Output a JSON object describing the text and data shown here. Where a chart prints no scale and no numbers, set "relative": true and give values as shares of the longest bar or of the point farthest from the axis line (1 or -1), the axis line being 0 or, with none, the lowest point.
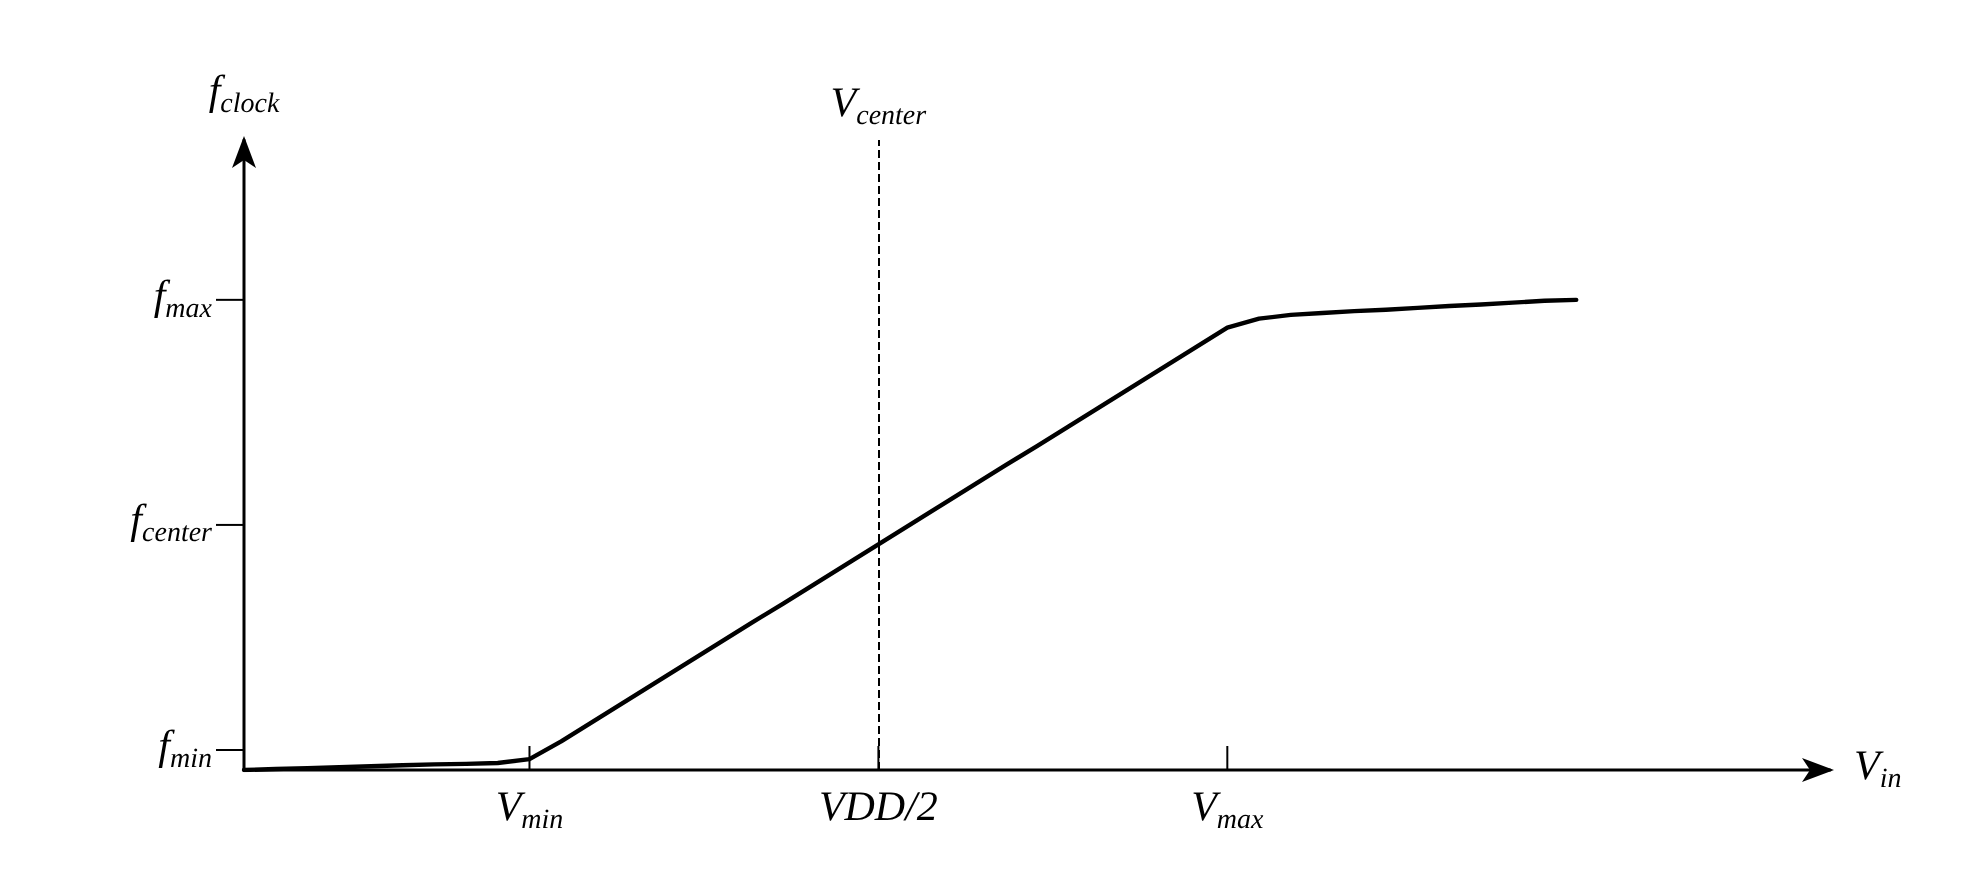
{
  "chart_data": {
    "type": "line",
    "relative": true,
    "xlabel": "V$_{in}$",
    "ylabel": "f$_{clock}$",
    "categories": [
      null,
      null,
      null,
      null,
      null,
      null,
      null,
      null,
      null,
      "V$_{min}$",
      null,
      null,
      null,
      null,
      null,
      null,
      null,
      null,
      null,
      null,
      "VDD/2",
      null,
      null,
      null,
      null,
      null,
      null,
      null,
      null,
      null,
      null,
      "V$_{max}$",
      null,
      null,
      null,
      null,
      null,
      null,
      null,
      null,
      null,
      null,
      null,
      null,
      null,
      null,
      null,
      null,
      null,
      null,
      null
    ],
    "series": [
      {
        "color": "#000000",
        "values": [
          0,
          0.002,
          0.004,
          0.006,
          0.008,
          0.01,
          0.012,
          0.013,
          0.015,
          0.023,
          0.061,
          0.103,
          0.145,
          0.187,
          0.229,
          0.271,
          0.313,
          0.354,
          0.396,
          0.438,
          0.48,
          0.522,
          0.564,
          0.606,
          0.648,
          0.689,
          0.731,
          0.773,
          0.815,
          0.857,
          0.899,
          0.941,
          0.96,
          0.968,
          0.972,
          0.976,
          0.979,
          0.983,
          0.987,
          0.99,
          0.994,
          0.998,
          1,
          null,
          null,
          null,
          null,
          null,
          null,
          null,
          null
        ]
      }
    ],
    "annotations": [
      "f$_{min}$",
      "f$_{center}$",
      "f$_{max}$"
    ],
    "ref_lines": [
      {
        "axis": "x",
        "value": "VDD/2",
        "label": "V$_{center}$",
        "color": "#000000",
        "line_style": "dashed"
      }
    ],
    "line_style": "solid"
  }
}
